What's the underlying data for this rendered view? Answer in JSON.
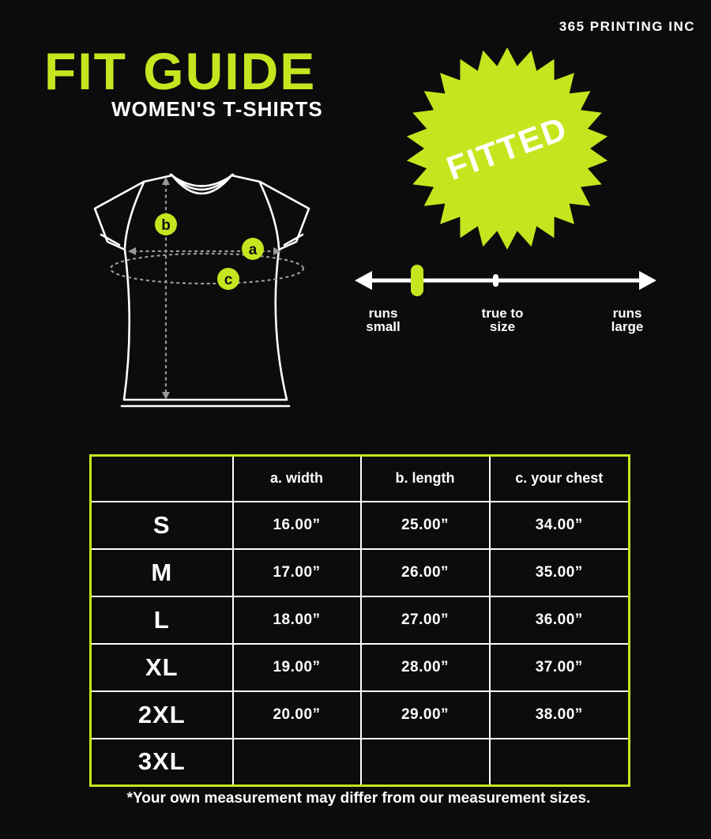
{
  "colors": {
    "accent": "#c6e51f",
    "background": "#0c0c0c"
  },
  "header": {
    "brand": "365 PRINTING INC",
    "title": "FIT GUIDE",
    "subtitle": "WOMEN'S T-SHIRTS"
  },
  "badge": {
    "label": "FITTED"
  },
  "diagram": {
    "markers": {
      "a": "a",
      "b": "b",
      "c": "c"
    }
  },
  "fit_scale": {
    "left": {
      "line1": "runs",
      "line2": "small"
    },
    "center": {
      "line1": "true to",
      "line2": "size"
    },
    "right": {
      "line1": "runs",
      "line2": "large"
    },
    "selected": "runs small"
  },
  "size_table": {
    "columns": [
      "",
      "a. width",
      "b. length",
      "c. your chest"
    ],
    "rows": [
      {
        "size": "S",
        "width": "16.00”",
        "length": "25.00”",
        "chest": "34.00”"
      },
      {
        "size": "M",
        "width": "17.00”",
        "length": "26.00”",
        "chest": "35.00”"
      },
      {
        "size": "L",
        "width": "18.00”",
        "length": "27.00”",
        "chest": "36.00”"
      },
      {
        "size": "XL",
        "width": "19.00”",
        "length": "28.00”",
        "chest": "37.00”"
      },
      {
        "size": "2XL",
        "width": "20.00”",
        "length": "29.00”",
        "chest": "38.00”"
      },
      {
        "size": "3XL",
        "width": "",
        "length": "",
        "chest": ""
      }
    ]
  },
  "footnote": "*Your own measurement may differ from our measurement sizes."
}
